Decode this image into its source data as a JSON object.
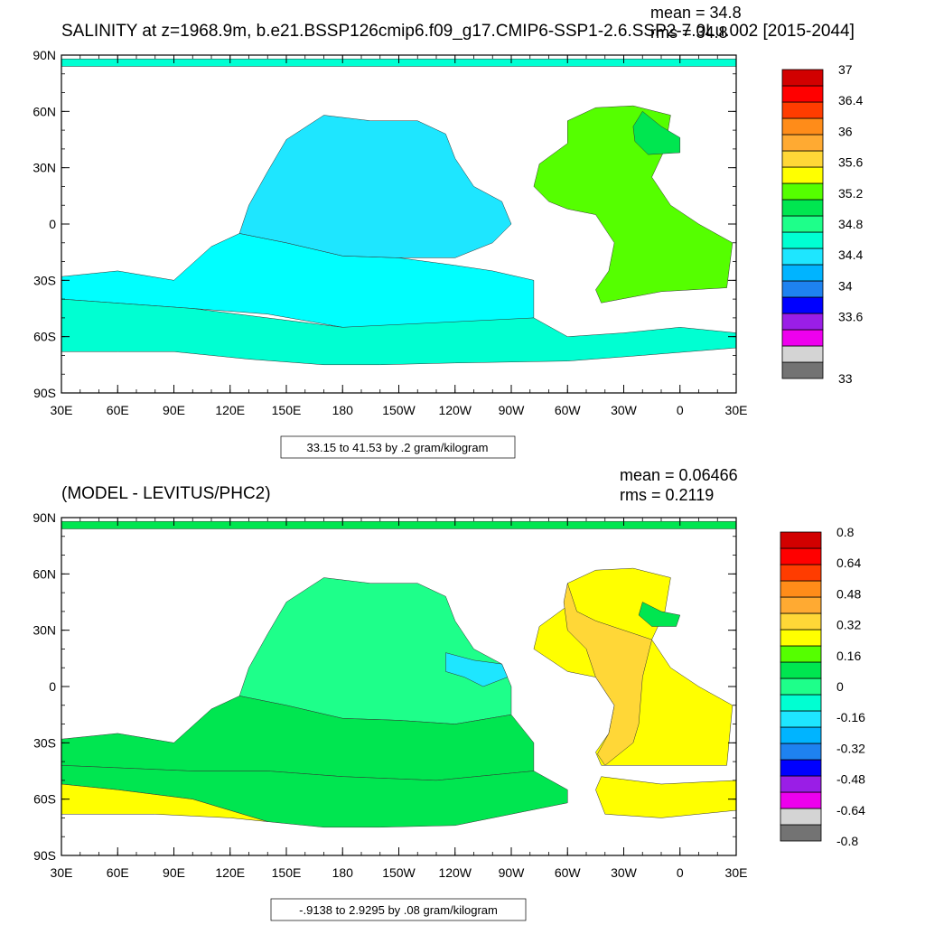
{
  "chart_data": [
    {
      "type": "heatmap",
      "title": "SALINITY at z=1968.9m, b.e21.BSSP126cmip6.f09_g17.CMIP6-SSP1-2.6.SSP2-7.0Lu.002 [2015-2044]",
      "stats": [
        "mean = 34.8",
        "rms = 34.8"
      ],
      "contour_info": "33.15 to 41.53 by .2 gram/kilogram",
      "x_ticks": [
        "30E",
        "60E",
        "90E",
        "120E",
        "150E",
        "180",
        "150W",
        "120W",
        "90W",
        "60W",
        "30W",
        "0",
        "30E"
      ],
      "y_ticks": [
        "90N",
        "60N",
        "30N",
        "0",
        "30S",
        "60S",
        "90S"
      ],
      "xlim": [
        30,
        390
      ],
      "ylim": [
        -90,
        90
      ],
      "colorbar": {
        "colors": [
          "#737373",
          "#d4d4d4",
          "#ee00ee",
          "#9a1ee6",
          "#0000ff",
          "#1e82f0",
          "#00b4ff",
          "#1ee6ff",
          "#00ffd2",
          "#1eff8a",
          "#00e650",
          "#55ff00",
          "#ffff00",
          "#ffd737",
          "#ffaa32",
          "#ff8c19",
          "#ff3c00",
          "#ff0000",
          "#d20000"
        ],
        "labels": [
          "33",
          "33.6",
          "34",
          "34.4",
          "34.8",
          "35.2",
          "35.6",
          "36",
          "36.4",
          "37"
        ],
        "label_slots": [
          0,
          4,
          6,
          8,
          10,
          12,
          14,
          16,
          18,
          20
        ]
      },
      "regions": [
        {
          "fill": "#00ffff",
          "lon_lat": [
            [
              30,
              -28
            ],
            [
              60,
              -25
            ],
            [
              90,
              -30
            ],
            [
              110,
              -12
            ],
            [
              125,
              -5
            ],
            [
              150,
              -10
            ],
            [
              180,
              -17
            ],
            [
              210,
              -18
            ],
            [
              240,
              -22
            ],
            [
              260,
              -25
            ],
            [
              282,
              -30
            ],
            [
              282,
              -50
            ],
            [
              230,
              -57
            ],
            [
              180,
              -55
            ],
            [
              140,
              -48
            ],
            [
              100,
              -45
            ],
            [
              30,
              -40
            ]
          ]
        },
        {
          "fill": "#00ffd2",
          "lon_lat": [
            [
              30,
              -40
            ],
            [
              100,
              -45
            ],
            [
              180,
              -55
            ],
            [
              282,
              -50
            ],
            [
              300,
              -60
            ],
            [
              330,
              -58
            ],
            [
              360,
              -55
            ],
            [
              390,
              -58
            ],
            [
              390,
              -66
            ],
            [
              340,
              -70
            ],
            [
              300,
              -73
            ],
            [
              240,
              -74
            ],
            [
              200,
              -75
            ],
            [
              170,
              -75
            ],
            [
              130,
              -72
            ],
            [
              90,
              -68
            ],
            [
              60,
              -68
            ],
            [
              30,
              -68
            ]
          ]
        },
        {
          "fill": "#1ee6ff",
          "lon_lat": [
            [
              125,
              -5
            ],
            [
              130,
              10
            ],
            [
              140,
              28
            ],
            [
              150,
              45
            ],
            [
              170,
              58
            ],
            [
              195,
              55
            ],
            [
              220,
              55
            ],
            [
              235,
              48
            ],
            [
              240,
              35
            ],
            [
              250,
              20
            ],
            [
              265,
              12
            ],
            [
              270,
              0
            ],
            [
              260,
              -10
            ],
            [
              240,
              -18
            ],
            [
              210,
              -18
            ],
            [
              180,
              -17
            ],
            [
              150,
              -10
            ]
          ]
        },
        {
          "fill": "#55ff00",
          "lon_lat": [
            [
              300,
              55
            ],
            [
              300,
              43
            ],
            [
              285,
              32
            ],
            [
              282,
              20
            ],
            [
              290,
              12
            ],
            [
              300,
              8
            ],
            [
              315,
              5
            ],
            [
              325,
              -10
            ],
            [
              322,
              -25
            ],
            [
              315,
              -35
            ],
            [
              318,
              -42
            ],
            [
              350,
              -36
            ],
            [
              385,
              -34
            ],
            [
              388,
              -10
            ],
            [
              370,
              0
            ],
            [
              355,
              10
            ],
            [
              345,
              25
            ],
            [
              352,
              40
            ],
            [
              355,
              58
            ],
            [
              335,
              63
            ],
            [
              315,
              62
            ]
          ]
        },
        {
          "fill": "#00e650",
          "lon_lat": [
            [
              340,
              60
            ],
            [
              350,
              52
            ],
            [
              360,
              46
            ],
            [
              360,
              38
            ],
            [
              343,
              37
            ],
            [
              336,
              44
            ],
            [
              335,
              52
            ]
          ]
        },
        {
          "fill": "#00ffd2",
          "lon_lat": [
            [
              30,
              84
            ],
            [
              390,
              84
            ],
            [
              390,
              88
            ],
            [
              30,
              88
            ]
          ]
        }
      ]
    },
    {
      "type": "heatmap",
      "title": "(MODEL - LEVITUS/PHC2)",
      "stats": [
        "mean = 0.06466",
        "rms = 0.2119"
      ],
      "contour_info": "-.9138 to 2.9295 by .08 gram/kilogram",
      "x_ticks": [
        "30E",
        "60E",
        "90E",
        "120E",
        "150E",
        "180",
        "150W",
        "120W",
        "90W",
        "60W",
        "30W",
        "0",
        "30E"
      ],
      "y_ticks": [
        "90N",
        "60N",
        "30N",
        "0",
        "30S",
        "60S",
        "90S"
      ],
      "xlim": [
        30,
        390
      ],
      "ylim": [
        -90,
        90
      ],
      "colorbar": {
        "colors": [
          "#737373",
          "#d4d4d4",
          "#ee00ee",
          "#9a1ee6",
          "#0000ff",
          "#1e82f0",
          "#00b4ff",
          "#1ee6ff",
          "#00ffd2",
          "#1eff8a",
          "#00e650",
          "#55ff00",
          "#ffff00",
          "#ffd737",
          "#ffaa32",
          "#ff8c19",
          "#ff3c00",
          "#ff0000",
          "#d20000"
        ],
        "labels": [
          "-0.8",
          "-0.64",
          "-0.48",
          "-0.32",
          "-0.16",
          "0",
          "0.16",
          "0.32",
          "0.48",
          "0.64",
          "0.8"
        ],
        "label_slots": [
          0,
          2,
          4,
          6,
          8,
          10,
          12,
          14,
          16,
          18,
          20
        ]
      },
      "regions": [
        {
          "fill": "#1eff8a",
          "lon_lat": [
            [
              125,
              -5
            ],
            [
              130,
              10
            ],
            [
              140,
              28
            ],
            [
              150,
              45
            ],
            [
              170,
              58
            ],
            [
              195,
              55
            ],
            [
              220,
              55
            ],
            [
              235,
              48
            ],
            [
              240,
              35
            ],
            [
              250,
              20
            ],
            [
              265,
              12
            ],
            [
              270,
              0
            ],
            [
              270,
              -15
            ],
            [
              240,
              -20
            ],
            [
              210,
              -18
            ],
            [
              180,
              -17
            ],
            [
              150,
              -10
            ]
          ]
        },
        {
          "fill": "#1ee6ff",
          "lon_lat": [
            [
              235,
              18
            ],
            [
              250,
              14
            ],
            [
              265,
              12
            ],
            [
              268,
              5
            ],
            [
              255,
              0
            ],
            [
              245,
              5
            ],
            [
              235,
              8
            ]
          ]
        },
        {
          "fill": "#00e650",
          "lon_lat": [
            [
              30,
              -28
            ],
            [
              60,
              -25
            ],
            [
              90,
              -30
            ],
            [
              110,
              -12
            ],
            [
              125,
              -5
            ],
            [
              150,
              -10
            ],
            [
              180,
              -17
            ],
            [
              210,
              -18
            ],
            [
              240,
              -20
            ],
            [
              270,
              -15
            ],
            [
              282,
              -30
            ],
            [
              282,
              -45
            ],
            [
              230,
              -50
            ],
            [
              180,
              -48
            ],
            [
              140,
              -45
            ],
            [
              100,
              -45
            ],
            [
              30,
              -42
            ]
          ]
        },
        {
          "fill": "#00e650",
          "lon_lat": [
            [
              30,
              -42
            ],
            [
              100,
              -45
            ],
            [
              140,
              -45
            ],
            [
              180,
              -48
            ],
            [
              230,
              -50
            ],
            [
              282,
              -45
            ],
            [
              300,
              -55
            ],
            [
              300,
              -62
            ],
            [
              240,
              -74
            ],
            [
              200,
              -75
            ],
            [
              170,
              -75
            ],
            [
              140,
              -72
            ],
            [
              100,
              -60
            ],
            [
              60,
              -55
            ],
            [
              30,
              -52
            ]
          ]
        },
        {
          "fill": "#ffff00",
          "lon_lat": [
            [
              30,
              -52
            ],
            [
              60,
              -55
            ],
            [
              100,
              -60
            ],
            [
              140,
              -72
            ],
            [
              120,
              -70
            ],
            [
              80,
              -68
            ],
            [
              30,
              -68
            ]
          ]
        },
        {
          "fill": "#ffff00",
          "lon_lat": [
            [
              282,
              20
            ],
            [
              300,
              8
            ],
            [
              315,
              5
            ],
            [
              325,
              -10
            ],
            [
              322,
              -25
            ],
            [
              315,
              -35
            ],
            [
              318,
              -42
            ],
            [
              350,
              -42
            ],
            [
              385,
              -42
            ],
            [
              388,
              -10
            ],
            [
              370,
              0
            ],
            [
              355,
              10
            ],
            [
              345,
              25
            ],
            [
              352,
              40
            ],
            [
              355,
              58
            ],
            [
              335,
              63
            ],
            [
              315,
              62
            ],
            [
              300,
              55
            ],
            [
              300,
              43
            ],
            [
              285,
              32
            ]
          ]
        },
        {
          "fill": "#ffd737",
          "lon_lat": [
            [
              300,
              55
            ],
            [
              305,
              40
            ],
            [
              315,
              35
            ],
            [
              330,
              30
            ],
            [
              345,
              25
            ],
            [
              340,
              5
            ],
            [
              338,
              -20
            ],
            [
              335,
              -30
            ],
            [
              320,
              -42
            ],
            [
              316,
              -36
            ],
            [
              322,
              -25
            ],
            [
              325,
              -10
            ],
            [
              315,
              5
            ],
            [
              310,
              20
            ],
            [
              300,
              30
            ],
            [
              298,
              45
            ]
          ]
        },
        {
          "fill": "#ffff00",
          "lon_lat": [
            [
              318,
              -48
            ],
            [
              350,
              -52
            ],
            [
              390,
              -50
            ],
            [
              390,
              -66
            ],
            [
              350,
              -70
            ],
            [
              320,
              -68
            ],
            [
              315,
              -55
            ]
          ]
        },
        {
          "fill": "#00e650",
          "lon_lat": [
            [
              340,
              45
            ],
            [
              350,
              40
            ],
            [
              360,
              38
            ],
            [
              358,
              32
            ],
            [
              345,
              32
            ],
            [
              338,
              38
            ]
          ]
        },
        {
          "fill": "#00e650",
          "lon_lat": [
            [
              30,
              84
            ],
            [
              390,
              84
            ],
            [
              390,
              88
            ],
            [
              30,
              88
            ]
          ]
        }
      ]
    }
  ]
}
